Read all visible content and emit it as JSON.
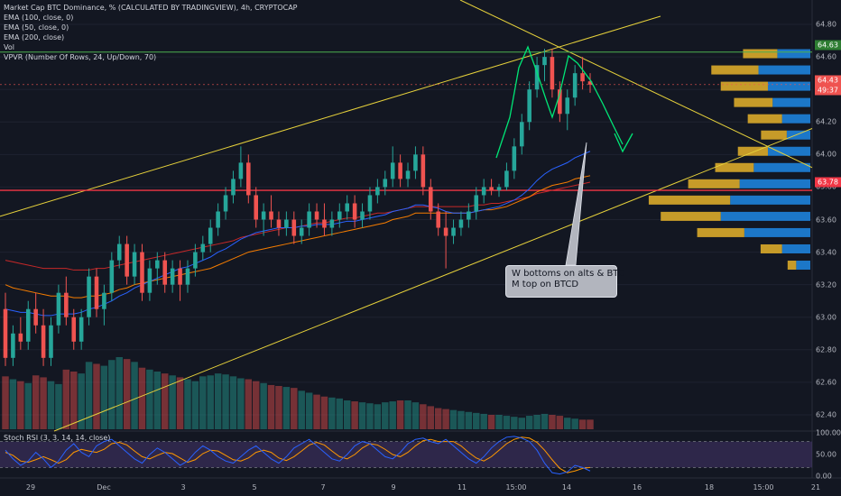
{
  "legend": {
    "title": "Market Cap BTC Dominance, % (CALCULATED BY TRADINGVIEW), 4h, CRYPTOCAP",
    "ema100": "EMA (100, close, 0)",
    "ema50": "EMA (50, close, 0)",
    "ema200": "EMA (200, close)",
    "vol": "Vol",
    "vpvr": "VPVR (Number Of Rows, 24, Up/Down, 70)",
    "stoch": "Stoch RSI (3, 3, 14, 14, close)"
  },
  "annotation": {
    "line1": "W bottoms on alts & BTC",
    "line2": "M top on BTCD"
  },
  "price_tags": {
    "resistance": "64.63",
    "last": "64.43",
    "countdown": "49:37",
    "support": "63.78"
  },
  "y_axis_labels": [
    "64.80",
    "64.60",
    "64.40",
    "64.20",
    "64.00",
    "63.80",
    "63.60",
    "63.40",
    "63.20",
    "63.00",
    "62.80",
    "62.60",
    "62.40"
  ],
  "osc_axis_labels": [
    "100.00",
    "50.00",
    "0.00"
  ],
  "x_axis_labels": [
    "29",
    "Dec",
    "3",
    "5",
    "7",
    "9",
    "11",
    "15:00",
    "14",
    "16",
    "18",
    "15:00",
    "21"
  ],
  "colors": {
    "background": "#131722",
    "up": "#26a69a",
    "down": "#ef5350",
    "ema50": "#2962ff",
    "ema100": "#f57c00",
    "ema200": "#c62828",
    "trendline": "#e6d13b",
    "resistance_line": "#4caf50",
    "support_line": "#f23645",
    "arrow": "#00e676",
    "stoch_k": "#2962ff",
    "stoch_d": "#ff9800",
    "vpvr_up": "#1e88e5",
    "vpvr_down": "#e6b32a",
    "osc_fill": "#7e57c2"
  },
  "chart_data": {
    "type": "candlestick",
    "symbol": "CRYPTOCAP BTC Dominance %",
    "interval": "4h",
    "ylim": [
      62.3,
      64.95
    ],
    "candles": [
      [
        63.05,
        63.15,
        62.7,
        62.75
      ],
      [
        62.75,
        62.95,
        62.7,
        62.9
      ],
      [
        62.9,
        63.0,
        62.8,
        62.85
      ],
      [
        62.85,
        63.1,
        62.8,
        63.05
      ],
      [
        63.05,
        63.15,
        62.9,
        62.95
      ],
      [
        62.95,
        63.05,
        62.7,
        62.75
      ],
      [
        62.75,
        63.0,
        62.7,
        62.95
      ],
      [
        62.95,
        63.2,
        62.9,
        63.15
      ],
      [
        63.15,
        63.25,
        62.95,
        63.0
      ],
      [
        63.0,
        63.05,
        62.8,
        62.85
      ],
      [
        62.85,
        63.05,
        62.8,
        63.0
      ],
      [
        63.0,
        63.3,
        62.95,
        63.25
      ],
      [
        63.25,
        63.3,
        63.0,
        63.05
      ],
      [
        63.05,
        63.2,
        62.95,
        63.15
      ],
      [
        63.15,
        63.4,
        63.1,
        63.35
      ],
      [
        63.35,
        63.5,
        63.3,
        63.45
      ],
      [
        63.45,
        63.5,
        63.2,
        63.25
      ],
      [
        63.25,
        63.45,
        63.2,
        63.4
      ],
      [
        63.4,
        63.45,
        63.1,
        63.15
      ],
      [
        63.15,
        63.35,
        63.1,
        63.3
      ],
      [
        63.3,
        63.4,
        63.2,
        63.35
      ],
      [
        63.35,
        63.4,
        63.15,
        63.2
      ],
      [
        63.2,
        63.35,
        63.15,
        63.3
      ],
      [
        63.3,
        63.35,
        63.1,
        63.2
      ],
      [
        63.2,
        63.35,
        63.15,
        63.3
      ],
      [
        63.3,
        63.45,
        63.25,
        63.4
      ],
      [
        63.4,
        63.5,
        63.35,
        63.45
      ],
      [
        63.45,
        63.6,
        63.4,
        63.55
      ],
      [
        63.55,
        63.7,
        63.5,
        63.65
      ],
      [
        63.65,
        63.8,
        63.6,
        63.75
      ],
      [
        63.75,
        63.9,
        63.7,
        63.85
      ],
      [
        63.85,
        64.05,
        63.8,
        63.95
      ],
      [
        63.95,
        64.0,
        63.7,
        63.75
      ],
      [
        63.75,
        63.8,
        63.55,
        63.6
      ],
      [
        63.6,
        63.7,
        63.5,
        63.65
      ],
      [
        63.65,
        63.75,
        63.55,
        63.6
      ],
      [
        63.6,
        63.65,
        63.5,
        63.55
      ],
      [
        63.55,
        63.65,
        63.5,
        63.6
      ],
      [
        63.6,
        63.65,
        63.45,
        63.5
      ],
      [
        63.5,
        63.6,
        63.45,
        63.55
      ],
      [
        63.55,
        63.7,
        63.5,
        63.65
      ],
      [
        63.65,
        63.7,
        63.55,
        63.6
      ],
      [
        63.6,
        63.7,
        63.5,
        63.55
      ],
      [
        63.55,
        63.65,
        63.5,
        63.6
      ],
      [
        63.6,
        63.7,
        63.55,
        63.65
      ],
      [
        63.65,
        63.75,
        63.6,
        63.7
      ],
      [
        63.7,
        63.75,
        63.55,
        63.6
      ],
      [
        63.6,
        63.7,
        63.55,
        63.65
      ],
      [
        63.65,
        63.8,
        63.6,
        63.75
      ],
      [
        63.75,
        63.85,
        63.7,
        63.8
      ],
      [
        63.8,
        63.9,
        63.75,
        63.85
      ],
      [
        63.85,
        64.05,
        63.8,
        63.95
      ],
      [
        63.95,
        64.0,
        63.8,
        63.85
      ],
      [
        63.85,
        63.95,
        63.8,
        63.9
      ],
      [
        63.9,
        64.05,
        63.85,
        64.0
      ],
      [
        64.0,
        64.05,
        63.75,
        63.8
      ],
      [
        63.8,
        63.85,
        63.6,
        63.65
      ],
      [
        63.65,
        63.7,
        63.5,
        63.55
      ],
      [
        63.55,
        63.65,
        63.3,
        63.5
      ],
      [
        63.5,
        63.6,
        63.45,
        63.55
      ],
      [
        63.55,
        63.65,
        63.5,
        63.6
      ],
      [
        63.6,
        63.7,
        63.55,
        63.65
      ],
      [
        63.65,
        63.8,
        63.6,
        63.75
      ],
      [
        63.75,
        63.85,
        63.7,
        63.8
      ],
      [
        63.8,
        63.85,
        63.75,
        63.78
      ],
      [
        63.78,
        63.82,
        63.74,
        63.8
      ],
      [
        63.8,
        63.95,
        63.78,
        63.9
      ],
      [
        63.9,
        64.1,
        63.85,
        64.05
      ],
      [
        64.05,
        64.25,
        64.0,
        64.2
      ],
      [
        64.2,
        64.45,
        64.15,
        64.4
      ],
      [
        64.4,
        64.6,
        64.35,
        64.55
      ],
      [
        64.55,
        64.65,
        64.45,
        64.6
      ],
      [
        64.6,
        64.65,
        64.35,
        64.4
      ],
      [
        64.4,
        64.45,
        64.2,
        64.25
      ],
      [
        64.25,
        64.4,
        64.15,
        64.35
      ],
      [
        64.35,
        64.55,
        64.3,
        64.5
      ],
      [
        64.5,
        64.6,
        64.4,
        64.45
      ],
      [
        64.45,
        64.5,
        64.38,
        64.43
      ]
    ],
    "volume": [
      55,
      52,
      50,
      48,
      56,
      54,
      50,
      47,
      62,
      60,
      58,
      70,
      68,
      66,
      72,
      75,
      73,
      70,
      64,
      62,
      60,
      58,
      56,
      54,
      52,
      50,
      55,
      56,
      58,
      57,
      55,
      53,
      52,
      50,
      48,
      46,
      45,
      44,
      43,
      40,
      38,
      36,
      34,
      33,
      32,
      30,
      29,
      28,
      27,
      26,
      28,
      29,
      30,
      30,
      28,
      26,
      24,
      22,
      21,
      20,
      19,
      18,
      17,
      16,
      15,
      15,
      14,
      13,
      12,
      14,
      15,
      16,
      15,
      14,
      12,
      11,
      10,
      10
    ],
    "ema50": [
      63.05,
      63.04,
      63.03,
      63.03,
      63.02,
      63.01,
      63.01,
      63.02,
      63.02,
      63.02,
      63.03,
      63.05,
      63.06,
      63.08,
      63.1,
      63.13,
      63.15,
      63.18,
      63.2,
      63.22,
      63.24,
      63.26,
      63.28,
      63.3,
      63.31,
      63.33,
      63.35,
      63.37,
      63.4,
      63.42,
      63.45,
      63.48,
      63.5,
      63.52,
      63.53,
      63.54,
      63.55,
      63.55,
      63.55,
      63.56,
      63.56,
      63.57,
      63.57,
      63.57,
      63.58,
      63.59,
      63.59,
      63.6,
      63.61,
      63.62,
      63.63,
      63.65,
      63.66,
      63.67,
      63.69,
      63.69,
      63.68,
      63.67,
      63.65,
      63.64,
      63.64,
      63.64,
      63.65,
      63.66,
      63.67,
      63.68,
      63.7,
      63.72,
      63.75,
      63.79,
      63.84,
      63.88,
      63.91,
      63.93,
      63.95,
      63.98,
      64.0,
      64.02
    ],
    "ema100": [
      63.2,
      63.18,
      63.17,
      63.16,
      63.15,
      63.14,
      63.13,
      63.13,
      63.13,
      63.12,
      63.12,
      63.13,
      63.13,
      63.14,
      63.15,
      63.17,
      63.18,
      63.2,
      63.21,
      63.22,
      63.23,
      63.24,
      63.25,
      63.26,
      63.27,
      63.28,
      63.29,
      63.3,
      63.32,
      63.34,
      63.36,
      63.38,
      63.4,
      63.41,
      63.42,
      63.43,
      63.44,
      63.45,
      63.46,
      63.47,
      63.48,
      63.49,
      63.5,
      63.51,
      63.52,
      63.53,
      63.54,
      63.55,
      63.56,
      63.57,
      63.58,
      63.6,
      63.61,
      63.62,
      63.64,
      63.64,
      63.64,
      63.64,
      63.64,
      63.64,
      63.64,
      63.64,
      63.65,
      63.66,
      63.66,
      63.67,
      63.68,
      63.7,
      63.72,
      63.74,
      63.77,
      63.79,
      63.81,
      63.82,
      63.83,
      63.85,
      63.86,
      63.87
    ],
    "ema200": [
      63.35,
      63.34,
      63.33,
      63.32,
      63.31,
      63.3,
      63.3,
      63.3,
      63.3,
      63.29,
      63.29,
      63.29,
      63.3,
      63.3,
      63.31,
      63.32,
      63.33,
      63.34,
      63.35,
      63.36,
      63.37,
      63.38,
      63.39,
      63.4,
      63.41,
      63.42,
      63.43,
      63.44,
      63.45,
      63.46,
      63.47,
      63.49,
      63.5,
      63.51,
      63.52,
      63.53,
      63.54,
      63.55,
      63.55,
      63.56,
      63.57,
      63.58,
      63.58,
      63.59,
      63.6,
      63.61,
      63.61,
      63.62,
      63.63,
      63.64,
      63.64,
      63.65,
      63.66,
      63.67,
      63.68,
      63.68,
      63.68,
      63.68,
      63.68,
      63.68,
      63.68,
      63.68,
      63.69,
      63.69,
      63.7,
      63.7,
      63.71,
      63.72,
      63.73,
      63.74,
      63.76,
      63.77,
      63.78,
      63.79,
      63.8,
      63.81,
      63.82,
      63.83
    ],
    "horizontal_levels": [
      64.63,
      63.78
    ],
    "stoch_k": [
      60,
      40,
      25,
      35,
      55,
      40,
      20,
      35,
      60,
      75,
      55,
      45,
      70,
      80,
      85,
      70,
      55,
      40,
      30,
      50,
      65,
      55,
      40,
      25,
      35,
      55,
      70,
      60,
      45,
      35,
      30,
      45,
      60,
      70,
      55,
      40,
      30,
      45,
      65,
      75,
      85,
      70,
      55,
      40,
      35,
      50,
      70,
      80,
      75,
      60,
      45,
      40,
      55,
      75,
      85,
      88,
      80,
      75,
      85,
      70,
      55,
      40,
      30,
      45,
      65,
      80,
      90,
      92,
      88,
      80,
      60,
      30,
      8,
      5,
      10,
      25,
      20,
      12
    ],
    "stoch_d": [
      55,
      48,
      35,
      32,
      38,
      45,
      38,
      30,
      38,
      55,
      62,
      58,
      55,
      62,
      75,
      78,
      72,
      58,
      45,
      40,
      48,
      55,
      52,
      42,
      32,
      38,
      52,
      60,
      58,
      48,
      38,
      35,
      42,
      55,
      60,
      55,
      42,
      36,
      45,
      58,
      72,
      78,
      72,
      58,
      45,
      40,
      50,
      65,
      75,
      72,
      62,
      50,
      45,
      55,
      70,
      82,
      85,
      80,
      80,
      80,
      70,
      55,
      42,
      35,
      45,
      60,
      75,
      85,
      90,
      88,
      78,
      60,
      38,
      18,
      8,
      12,
      18,
      20
    ],
    "stoch_levels": [
      80,
      20
    ],
    "stoch_ylim": [
      0,
      100
    ]
  }
}
